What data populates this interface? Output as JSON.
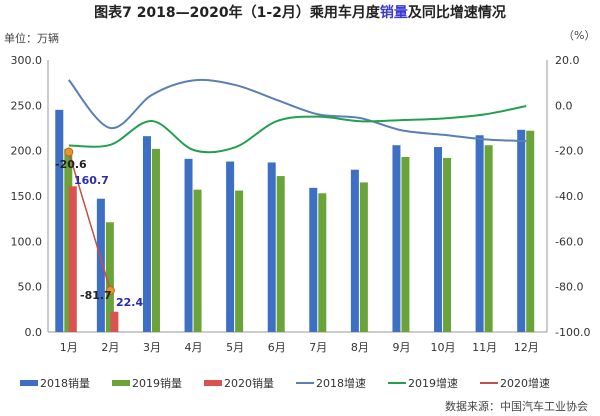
{
  "title_prefix": "图表7   2018—2020年（1-2月）乘用车月度",
  "title_highlight": "销量",
  "title_suffix": "及同比增速情况",
  "unit_label": "单位：万辆",
  "right_unit": "（%）",
  "source": "数据来源：中国汽车工业协会",
  "chart_data": {
    "type": "bar",
    "categories": [
      "1月",
      "2月",
      "3月",
      "4月",
      "5月",
      "6月",
      "7月",
      "8月",
      "9月",
      "10月",
      "11月",
      "12月"
    ],
    "ylim": [
      0,
      300
    ],
    "yticks": [
      "0.0",
      "50.0",
      "100.0",
      "150.0",
      "200.0",
      "250.0",
      "300.0"
    ],
    "y2lim": [
      -100,
      20
    ],
    "y2ticks": [
      "-100.0",
      "-80.0",
      "-60.0",
      "-40.0",
      "-20.0",
      "0.0",
      "20.0"
    ],
    "bars": [
      {
        "name": "2018销量",
        "color": "#3d6fc4",
        "values": [
          245,
          147,
          216,
          191,
          188,
          187,
          159,
          179,
          206,
          204,
          217,
          223
        ]
      },
      {
        "name": "2019销量",
        "color": "#6aa33a",
        "values": [
          202,
          121,
          202,
          157,
          156,
          172,
          153,
          165,
          193,
          192,
          206,
          222
        ]
      },
      {
        "name": "2020销量",
        "color": "#d9534f",
        "values": [
          160.7,
          22.4
        ]
      }
    ],
    "lines": [
      {
        "name": "2018增速",
        "color": "#5a7fb5",
        "values": [
          11.2,
          -10,
          4.6,
          11,
          9,
          2.4,
          -4,
          -5.6,
          -11,
          -13,
          -15,
          -15.8
        ]
      },
      {
        "name": "2019增速",
        "color": "#22a050",
        "values": [
          -17.7,
          -17.4,
          -6.9,
          -19.7,
          -18.5,
          -7,
          -5,
          -7,
          -6.5,
          -5.8,
          -4,
          -0.3
        ]
      },
      {
        "name": "2020增速",
        "color": "#c0504d",
        "values": [
          -20.6,
          -81.7
        ]
      }
    ],
    "labels": {
      "bar2020": [
        "160.7",
        "22.4"
      ],
      "line2020": [
        "-20.6",
        "-81.7"
      ]
    },
    "legend_position": "bottom"
  }
}
